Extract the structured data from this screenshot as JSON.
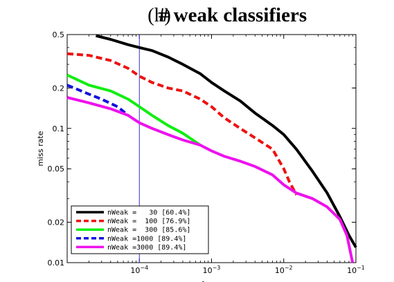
{
  "chart_data": {
    "type": "line",
    "panel_label": "(h)",
    "title": "# weak classifiers",
    "xlabel": "fppw",
    "ylabel": "miss rate",
    "x_scale": "log",
    "y_scale": "log",
    "xlim": [
      1e-05,
      0.1
    ],
    "ylim": [
      0.01,
      0.5
    ],
    "x_ticks": [
      {
        "value": 0.0001,
        "base": "10",
        "exp": "−4"
      },
      {
        "value": 0.001,
        "base": "10",
        "exp": "−3"
      },
      {
        "value": 0.01,
        "base": "10",
        "exp": "−2"
      },
      {
        "value": 0.1,
        "base": "10",
        "exp": "−1"
      }
    ],
    "y_ticks": [
      {
        "value": 0.5,
        "label": "0.5"
      },
      {
        "value": 0.2,
        "label": "0.2"
      },
      {
        "value": 0.1,
        "label": "0.1"
      },
      {
        "value": 0.05,
        "label": "0.05"
      },
      {
        "value": 0.02,
        "label": "0.02"
      },
      {
        "value": 0.01,
        "label": "0.01"
      }
    ],
    "reference_line": {
      "x": 0.0001,
      "color": "#3333cc"
    },
    "legend_position": "bottom-left",
    "series": [
      {
        "name": "nWeak =   30 [60.4%]",
        "color": "#000000",
        "dash": "solid",
        "x": [
          2.5e-05,
          4e-05,
          7e-05,
          0.0001,
          0.00015,
          0.00025,
          0.0004,
          0.0007,
          0.001,
          0.0015,
          0.0025,
          0.004,
          0.007,
          0.01,
          0.015,
          0.025,
          0.04,
          0.06,
          0.08,
          0.1
        ],
        "y": [
          0.49,
          0.46,
          0.42,
          0.4,
          0.38,
          0.34,
          0.3,
          0.255,
          0.22,
          0.19,
          0.16,
          0.13,
          0.105,
          0.09,
          0.07,
          0.048,
          0.033,
          0.022,
          0.016,
          0.013
        ]
      },
      {
        "name": "nWeak =  100 [76.9%]",
        "color": "#ee1111",
        "dash": "dashed",
        "x": [
          1e-05,
          2e-05,
          4e-05,
          7e-05,
          0.0001,
          0.00015,
          0.00025,
          0.0004,
          0.0007,
          0.001,
          0.0015,
          0.0025,
          0.004,
          0.007,
          0.01,
          0.012,
          0.015
        ],
        "y": [
          0.36,
          0.35,
          0.32,
          0.28,
          0.245,
          0.22,
          0.2,
          0.19,
          0.165,
          0.145,
          0.12,
          0.1,
          0.085,
          0.07,
          0.05,
          0.04,
          0.032
        ]
      },
      {
        "name": "nWeak =  300 [85.6%]",
        "color": "#11ee11",
        "dash": "solid",
        "x": [
          1e-05,
          2e-05,
          4e-05,
          7e-05,
          0.0001,
          0.00015,
          0.00025,
          0.0004,
          0.0007
        ],
        "y": [
          0.25,
          0.21,
          0.19,
          0.165,
          0.145,
          0.125,
          0.105,
          0.092,
          0.075
        ]
      },
      {
        "name": "nWeak =1000 [89.4%]",
        "color": "#1111dd",
        "dash": "dashed",
        "x": [
          1e-05,
          2e-05,
          3e-05,
          5e-05,
          7e-05
        ],
        "y": [
          0.21,
          0.18,
          0.165,
          0.145,
          0.125
        ]
      },
      {
        "name": "nWeak =3000 [89.4%]",
        "color": "#ee11ee",
        "dash": "solid",
        "x": [
          1e-05,
          2e-05,
          4e-05,
          7e-05,
          0.0001,
          0.00015,
          0.00025,
          0.0004,
          0.0007,
          0.001,
          0.0015,
          0.0025,
          0.004,
          0.007,
          0.01,
          0.015,
          0.025,
          0.04,
          0.06,
          0.075,
          0.09
        ],
        "y": [
          0.17,
          0.155,
          0.14,
          0.125,
          0.11,
          0.1,
          0.09,
          0.082,
          0.075,
          0.068,
          0.062,
          0.057,
          0.052,
          0.045,
          0.038,
          0.033,
          0.03,
          0.026,
          0.021,
          0.016,
          0.01
        ]
      }
    ]
  }
}
